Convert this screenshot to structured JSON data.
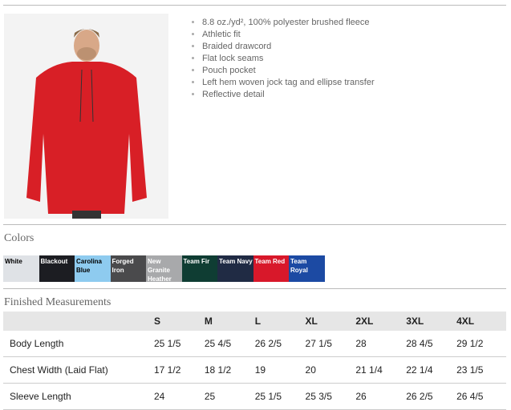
{
  "product": {
    "features": [
      "8.8 oz./yd², 100% polyester brushed fleece",
      "Athletic fit",
      "Braided drawcord",
      "Flat lock seams",
      "Pouch pocket",
      "Left hem woven jock tag and ellipse transfer",
      "Reflective detail"
    ]
  },
  "colors": {
    "title": "Colors",
    "items": [
      {
        "label": "White",
        "bg": "#dfe2e6",
        "fg": "#000"
      },
      {
        "label": "Blackout",
        "bg": "#1c1d22",
        "fg": "#fff"
      },
      {
        "label": "Carolina Blue",
        "bg": "#8ecbef",
        "fg": "#000"
      },
      {
        "label": "Forged Iron",
        "bg": "#4a4a4c",
        "fg": "#fff"
      },
      {
        "label": "New Granite Heather",
        "bg": "#a8a9ab",
        "fg": "#fff"
      },
      {
        "label": "Team Fir",
        "bg": "#0f3d33",
        "fg": "#fff"
      },
      {
        "label": "Team Navy",
        "bg": "#202b44",
        "fg": "#fff"
      },
      {
        "label": "Team Red",
        "bg": "#d8182a",
        "fg": "#fff"
      },
      {
        "label": "Team Royal",
        "bg": "#1c4aa3",
        "fg": "#fff"
      }
    ]
  },
  "measurements": {
    "title": "Finished Measurements",
    "headers": [
      "",
      "S",
      "M",
      "L",
      "XL",
      "2XL",
      "3XL",
      "4XL"
    ],
    "rows": [
      [
        "Body Length",
        "25 1/5",
        "25 4/5",
        "26 2/5",
        "27 1/5",
        "28",
        "28 4/5",
        "29 1/2"
      ],
      [
        "Chest Width (Laid Flat)",
        "17 1/2",
        "18 1/2",
        "19",
        "20",
        "21 1/4",
        "22 1/4",
        "23 1/5"
      ],
      [
        "Sleeve Length",
        "24",
        "25",
        "25 1/5",
        "25 3/5",
        "26",
        "26 2/5",
        "26 4/5"
      ]
    ]
  }
}
